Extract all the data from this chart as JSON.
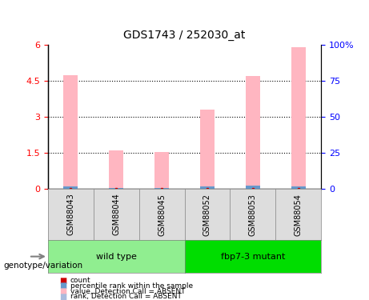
{
  "title": "GDS1743 / 252030_at",
  "samples": [
    "GSM88043",
    "GSM88044",
    "GSM88045",
    "GSM88052",
    "GSM88053",
    "GSM88054"
  ],
  "groups": [
    {
      "label": "wild type",
      "indices": [
        0,
        1,
        2
      ],
      "color": "#90EE90"
    },
    {
      "label": "fbp7-3 mutant",
      "indices": [
        3,
        4,
        5
      ],
      "color": "#00DD00"
    }
  ],
  "pink_bars": [
    4.75,
    1.6,
    1.55,
    3.3,
    4.7,
    5.9
  ],
  "blue_bars": [
    0.12,
    0.05,
    0.04,
    0.1,
    0.14,
    0.12
  ],
  "red_dots": [
    0.02,
    0.02,
    0.02,
    0.02,
    0.02,
    0.02
  ],
  "ylim_left": [
    0,
    6
  ],
  "ylim_right": [
    0,
    100
  ],
  "yticks_left": [
    0,
    1.5,
    3,
    4.5,
    6
  ],
  "yticks_right": [
    0,
    25,
    50,
    75,
    100
  ],
  "ytick_labels_left": [
    "0",
    "1.5",
    "3",
    "4.5",
    "6"
  ],
  "ytick_labels_right": [
    "0",
    "25",
    "50",
    "75",
    "100%"
  ],
  "grid_lines": [
    1.5,
    3.0,
    4.5
  ],
  "bar_width": 0.35,
  "pink_color": "#FFB6C1",
  "blue_color": "#6699CC",
  "red_color": "#CC0000",
  "light_blue_color": "#AABBDD",
  "group_label_prefix": "genotype/variation",
  "legend_items": [
    {
      "label": "count",
      "color": "#CC0000",
      "marker": "s"
    },
    {
      "label": "percentile rank within the sample",
      "color": "#6699CC",
      "marker": "s"
    },
    {
      "label": "value, Detection Call = ABSENT",
      "color": "#FFB6C1",
      "marker": "s"
    },
    {
      "label": "rank, Detection Call = ABSENT",
      "color": "#AABBDD",
      "marker": "s"
    }
  ]
}
